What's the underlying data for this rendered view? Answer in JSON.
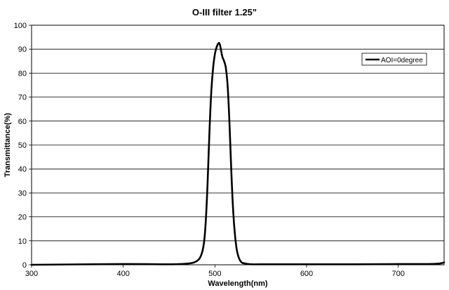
{
  "chart_data": {
    "type": "line",
    "title": "O-III filter 1.25\"",
    "xlabel": "Wavelength(nm)",
    "ylabel": "Transmittance(%)",
    "xlim": [
      300,
      750
    ],
    "ylim": [
      0,
      100
    ],
    "x_ticks": [
      300,
      400,
      500,
      600,
      700
    ],
    "y_ticks": [
      0,
      10,
      20,
      30,
      40,
      50,
      60,
      70,
      80,
      90,
      100
    ],
    "grid": "horizontal",
    "legend_position": "top-right",
    "series": [
      {
        "name": "AOI=0degree",
        "color": "#000000",
        "x": [
          300,
          400,
          450,
          470,
          480,
          485,
          488,
          490,
          492,
          494,
          496,
          498,
          500,
          502,
          504,
          505,
          506,
          508,
          510,
          512,
          514,
          516,
          518,
          520,
          522,
          524,
          526,
          528,
          530,
          535,
          540,
          550,
          600,
          650,
          700,
          740,
          750
        ],
        "y": [
          0,
          0.3,
          0.2,
          0.5,
          1.5,
          4,
          9,
          18,
          34,
          55,
          72,
          82,
          88,
          91,
          92.5,
          92.3,
          91,
          87,
          85,
          82,
          74,
          58,
          38,
          22,
          12,
          6,
          3,
          1.5,
          0.8,
          0.4,
          0.2,
          0.2,
          0.2,
          0.2,
          0.3,
          0.4,
          1
        ]
      }
    ]
  }
}
